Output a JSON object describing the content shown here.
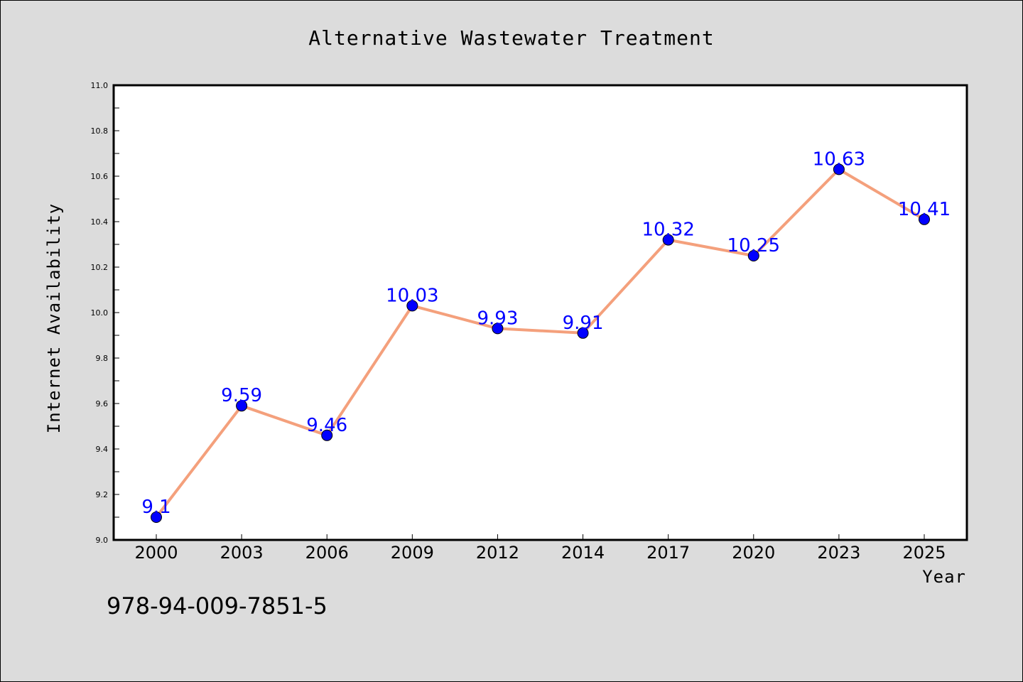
{
  "chart_data": {
    "type": "line",
    "title": "Alternative Wastewater Treatment",
    "xlabel": "Year",
    "ylabel": "Internet Availability",
    "categories": [
      "2000",
      "2003",
      "2006",
      "2009",
      "2012",
      "2014",
      "2017",
      "2020",
      "2023",
      "2025"
    ],
    "series": [
      {
        "values": [
          9.1,
          9.59,
          9.46,
          10.03,
          9.93,
          9.91,
          10.32,
          10.25,
          10.63,
          10.41
        ],
        "data_labels": [
          "9.1",
          "9.59",
          "9.46",
          "10.03",
          "9.93",
          "9.91",
          "10.32",
          "10.25",
          "10.63",
          "10.41"
        ],
        "line_color": "#f4a07c",
        "marker_color": "#0000ff"
      }
    ],
    "ylim": [
      9.0,
      11.0
    ],
    "yticks": [
      "9.0",
      "9.2",
      "9.4",
      "9.6",
      "9.8",
      "10.0",
      "10.2",
      "10.4",
      "10.6",
      "10.8",
      "11.0"
    ],
    "grid": false,
    "legend": "none"
  },
  "footer": {
    "code": "978-94-009-7851-5"
  }
}
